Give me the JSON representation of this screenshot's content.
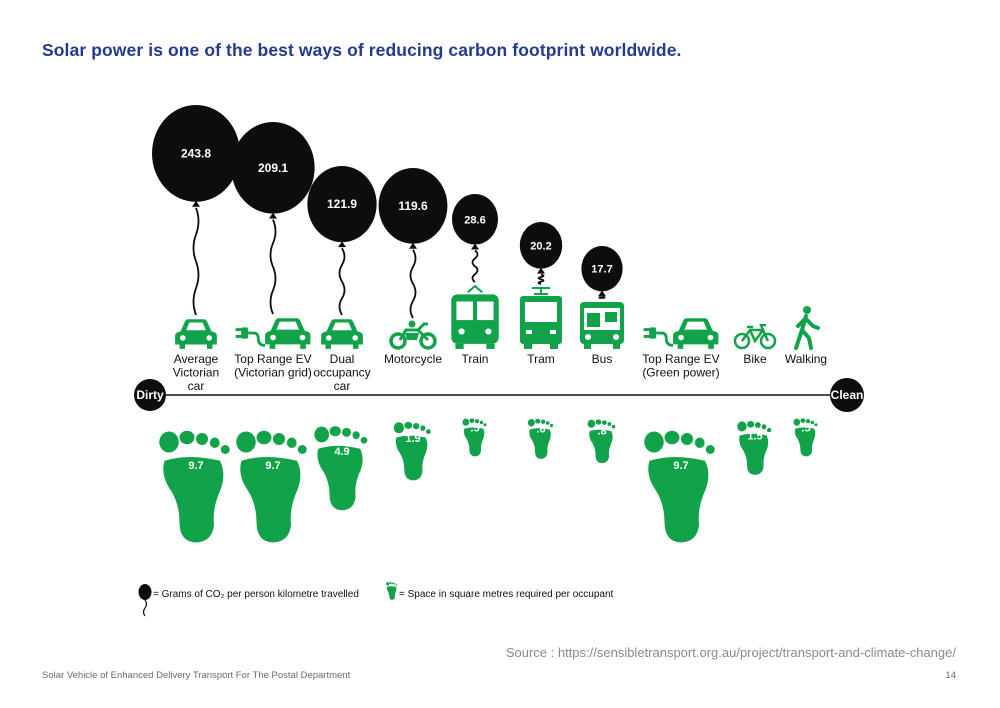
{
  "page": {
    "title": "Solar power is one of the best ways of reducing carbon footprint worldwide.",
    "source": "Source : https://sensibletransport.org.au/project/transport-and-climate-change/",
    "footer_left": "Solar Vehicle of Enhanced Delivery Transport For The Postal Department",
    "page_number": "14"
  },
  "chart_data": {
    "type": "infographic",
    "scale_left_label": "Dirty",
    "scale_right_label": "Clean",
    "categories": [
      {
        "label": [
          "Average",
          "Victorian",
          "car"
        ],
        "icon": "car-icon",
        "co2": "243.8",
        "space": "9.7"
      },
      {
        "label": [
          "Top Range EV",
          "(Victorian grid)"
        ],
        "icon": "ev-car-icon",
        "co2": "209.1",
        "space": "9.7"
      },
      {
        "label": [
          "Dual",
          "occupancy",
          "car"
        ],
        "icon": "car-icon",
        "co2": "121.9",
        "space": "4.9"
      },
      {
        "label": [
          "Motorcycle"
        ],
        "icon": "motorcycle-icon",
        "co2": "119.6",
        "space": "1.9"
      },
      {
        "label": [
          "Train"
        ],
        "icon": "train-icon",
        "co2": "28.6",
        "space": ".5"
      },
      {
        "label": [
          "Tram"
        ],
        "icon": "tram-icon",
        "co2": "20.2",
        "space": ".6"
      },
      {
        "label": [
          "Bus"
        ],
        "icon": "bus-icon",
        "co2": "17.7",
        "space": ".8"
      },
      {
        "label": [
          "Top Range EV",
          "(Green power)"
        ],
        "icon": "ev-car-icon",
        "co2": null,
        "space": "9.7"
      },
      {
        "label": [
          "Bike"
        ],
        "icon": "bike-icon",
        "co2": null,
        "space": "1.5"
      },
      {
        "label": [
          "Walking"
        ],
        "icon": "walking-icon",
        "co2": null,
        "space": ".5"
      }
    ],
    "legend": [
      {
        "icon": "balloon-icon",
        "text": "= Grams of CO₂ per person kilometre travelled"
      },
      {
        "icon": "footprint-icon",
        "text": "= Space in square metres required per occupant"
      }
    ],
    "colors": {
      "balloon": "#0d0d0d",
      "green": "#12a34a",
      "title": "#243a8f"
    }
  }
}
